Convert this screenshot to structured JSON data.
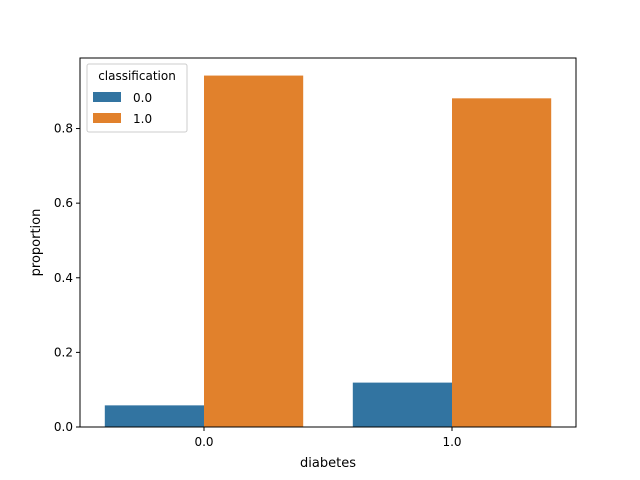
{
  "chart_data": {
    "type": "bar",
    "xlabel": "diabetes",
    "ylabel": "proportion",
    "categories": [
      "0.0",
      "1.0"
    ],
    "series": [
      {
        "name": "0.0",
        "color": "#3274a1",
        "values": [
          0.058,
          0.119
        ]
      },
      {
        "name": "1.0",
        "color": "#e1812c",
        "values": [
          0.942,
          0.881
        ]
      }
    ],
    "ylim": [
      0,
      0.942
    ],
    "yticks": [
      0.0,
      0.2,
      0.4,
      0.6,
      0.8
    ],
    "ytick_labels": [
      "0.0",
      "0.2",
      "0.4",
      "0.6",
      "0.8"
    ],
    "legend": {
      "title": "classification",
      "placement": "top-left"
    },
    "grid": false
  }
}
